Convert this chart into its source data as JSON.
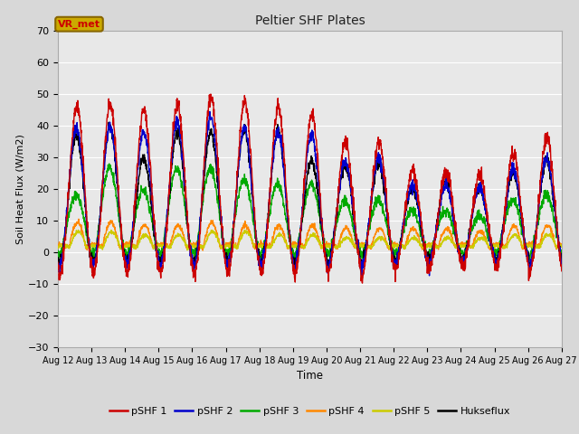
{
  "title": "Peltier SHF Plates",
  "xlabel": "Time",
  "ylabel": "Soil Heat Flux (W/m2)",
  "ylim": [
    -30,
    70
  ],
  "xlim": [
    0,
    15
  ],
  "yticks": [
    -30,
    -20,
    -10,
    0,
    10,
    20,
    30,
    40,
    50,
    60,
    70
  ],
  "xtick_labels": [
    "Aug 12",
    "Aug 13",
    "Aug 14",
    "Aug 15",
    "Aug 16",
    "Aug 17",
    "Aug 18",
    "Aug 19",
    "Aug 20",
    "Aug 21",
    "Aug 22",
    "Aug 23",
    "Aug 24",
    "Aug 25",
    "Aug 26",
    "Aug 27"
  ],
  "fig_bg": "#d8d8d8",
  "ax_bg": "#e8e8e8",
  "legend_entries": [
    "pSHF 1",
    "pSHF 2",
    "pSHF 3",
    "pSHF 4",
    "pSHF 5",
    "Hukseflux"
  ],
  "colors": [
    "#cc0000",
    "#0000cc",
    "#00aa00",
    "#ff8800",
    "#cccc00",
    "#000000"
  ],
  "annot_text": "VR_met",
  "annot_facecolor": "#ccaa00",
  "annot_edgecolor": "#886600"
}
